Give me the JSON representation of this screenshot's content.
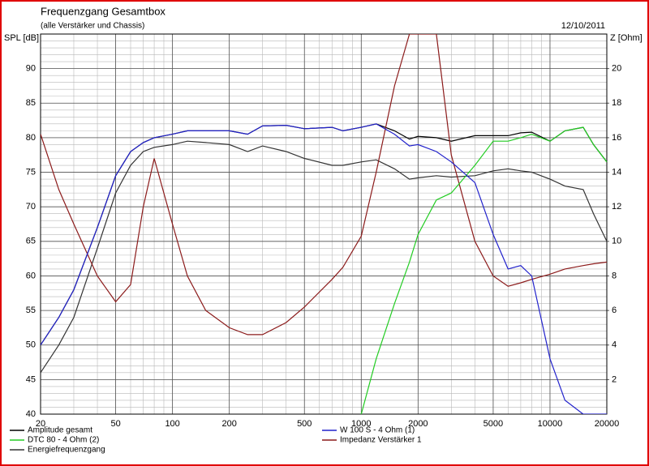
{
  "chart_data": {
    "type": "line",
    "title": "Frequenzgang Gesamtbox",
    "subtitle": "(alle Verstärker und Chassis)",
    "date": "12/10/2011",
    "y_label": "SPL [dB]",
    "y2_label": "Z [Ohm]",
    "log_x": true,
    "grid": true,
    "xlim": [
      20,
      20000
    ],
    "xticks": [
      20,
      50,
      100,
      200,
      500,
      1000,
      2000,
      5000,
      10000,
      20000
    ],
    "ylim": [
      40,
      95
    ],
    "yticks": [
      40,
      45,
      50,
      55,
      60,
      65,
      70,
      75,
      80,
      85,
      90
    ],
    "y2lim": [
      0,
      22
    ],
    "y2ticks": [
      2,
      4,
      6,
      8,
      10,
      12,
      14,
      16,
      18,
      20
    ],
    "x": [
      20,
      25,
      30,
      40,
      50,
      60,
      70,
      80,
      100,
      120,
      150,
      200,
      250,
      300,
      400,
      500,
      700,
      800,
      1000,
      1200,
      1500,
      1800,
      2000,
      2500,
      3000,
      4000,
      5000,
      6000,
      7000,
      8000,
      10000,
      12000,
      15000,
      17000,
      20000
    ],
    "series": [
      {
        "name": "Amplitude gesamt",
        "color": "#000000",
        "values": [
          50,
          54,
          58,
          67,
          74.5,
          78,
          79.3,
          80,
          80.5,
          81,
          81,
          81,
          80.5,
          81.7,
          81.8,
          81.3,
          81.5,
          81,
          81.5,
          82,
          81,
          79.8,
          80.2,
          80,
          79.5,
          80.3,
          80.3,
          80.3,
          80.7,
          80.8,
          79.5,
          81,
          81.5,
          79,
          76.5
        ]
      },
      {
        "name": "DTC 80 - 4 Ohm (2)",
        "color": "#22cc22",
        "values": [
          null,
          null,
          null,
          null,
          null,
          null,
          null,
          null,
          null,
          null,
          null,
          null,
          null,
          null,
          null,
          null,
          null,
          null,
          40,
          48,
          56,
          62,
          66,
          71,
          72,
          76,
          79.5,
          79.5,
          80,
          80.5,
          79.5,
          81,
          81.5,
          79,
          76.5
        ]
      },
      {
        "name": "Energiefrequenzgang",
        "color": "#333333",
        "values": [
          46,
          50,
          54,
          64,
          72,
          76,
          78,
          78.6,
          79,
          79.5,
          79.3,
          79,
          78,
          78.8,
          78,
          77,
          76,
          76,
          76.5,
          76.8,
          75.5,
          74,
          74.2,
          74.5,
          74.3,
          74.5,
          75.2,
          75.5,
          75.2,
          75,
          74,
          73,
          72.5,
          69,
          65
        ]
      },
      {
        "name": "W 100 S - 4 Ohm (1)",
        "color": "#2222cc",
        "values": [
          50,
          54,
          58,
          67,
          74.5,
          78,
          79.3,
          80,
          80.5,
          81,
          81,
          81,
          80.5,
          81.7,
          81.8,
          81.3,
          81.5,
          81,
          81.5,
          82,
          80.5,
          78.8,
          79,
          78,
          76.5,
          73.5,
          66,
          61,
          61.5,
          60,
          48,
          42,
          40,
          40,
          40
        ]
      },
      {
        "name": "Impedanz Verstärker 1",
        "color": "#8b1a1a",
        "axis": "y2",
        "values": [
          16.2,
          13,
          11,
          8,
          6.5,
          7.5,
          12,
          14.8,
          11,
          8,
          6,
          5,
          4.6,
          4.6,
          5.3,
          6.2,
          7.8,
          8.5,
          10.3,
          14,
          19,
          22,
          22,
          22,
          15,
          10,
          8,
          7.4,
          7.6,
          7.8,
          8.1,
          8.4,
          8.6,
          8.7,
          8.8
        ]
      }
    ]
  }
}
